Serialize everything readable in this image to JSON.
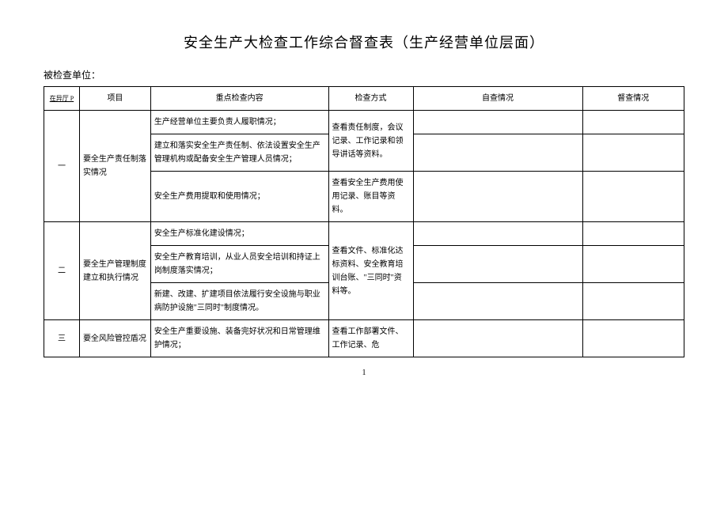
{
  "title": "安全生产大检查工作综合督查表（生产经营单位层面）",
  "sub_label": "被检查单位：",
  "headers": {
    "seq": "在异厅 P",
    "item": "项目",
    "content": "重点检查内容",
    "method": "检查方式",
    "self": "自查情况",
    "sup": "督查情况"
  },
  "rows": {
    "r1": {
      "seq": "一",
      "item": "要全生产责任制落实情况",
      "c1": "生产经营单位主要负责人履职情况；",
      "c2": "建立和落实安全生产责任制、依法设置安全生产管理机构或配备安全生产管理人员情况；",
      "c3": "安全生产费用提取和使用情况；",
      "m1": "查看责任制度，会议记录、工作记录和领导讲话等资料。",
      "m2": "查看安全生产费用使用记录、账目等资料。"
    },
    "r2": {
      "seq": "二",
      "item": "要全生产管理制度建立和执行情况",
      "c1": "安全生产标准化建设情况；",
      "c2": "安全生产教育培训，从业人员安全培训和持证上岗制度落实情况；",
      "c3": "新建、改建、扩建项目依法履行安全设施与职业病防护设施\"三同时\"制度情况。",
      "m1": "查看文件、标准化达标资料、安全教育培训台账、\"三同时\"资料等。"
    },
    "r3": {
      "seq": "三",
      "item": "要全风险管控盾况",
      "c1": "安全生产重要设施、装备完好状况和日常管理维护情况；",
      "m1": "查看工作部署文件、工作记录、危"
    }
  },
  "page_number": "1"
}
